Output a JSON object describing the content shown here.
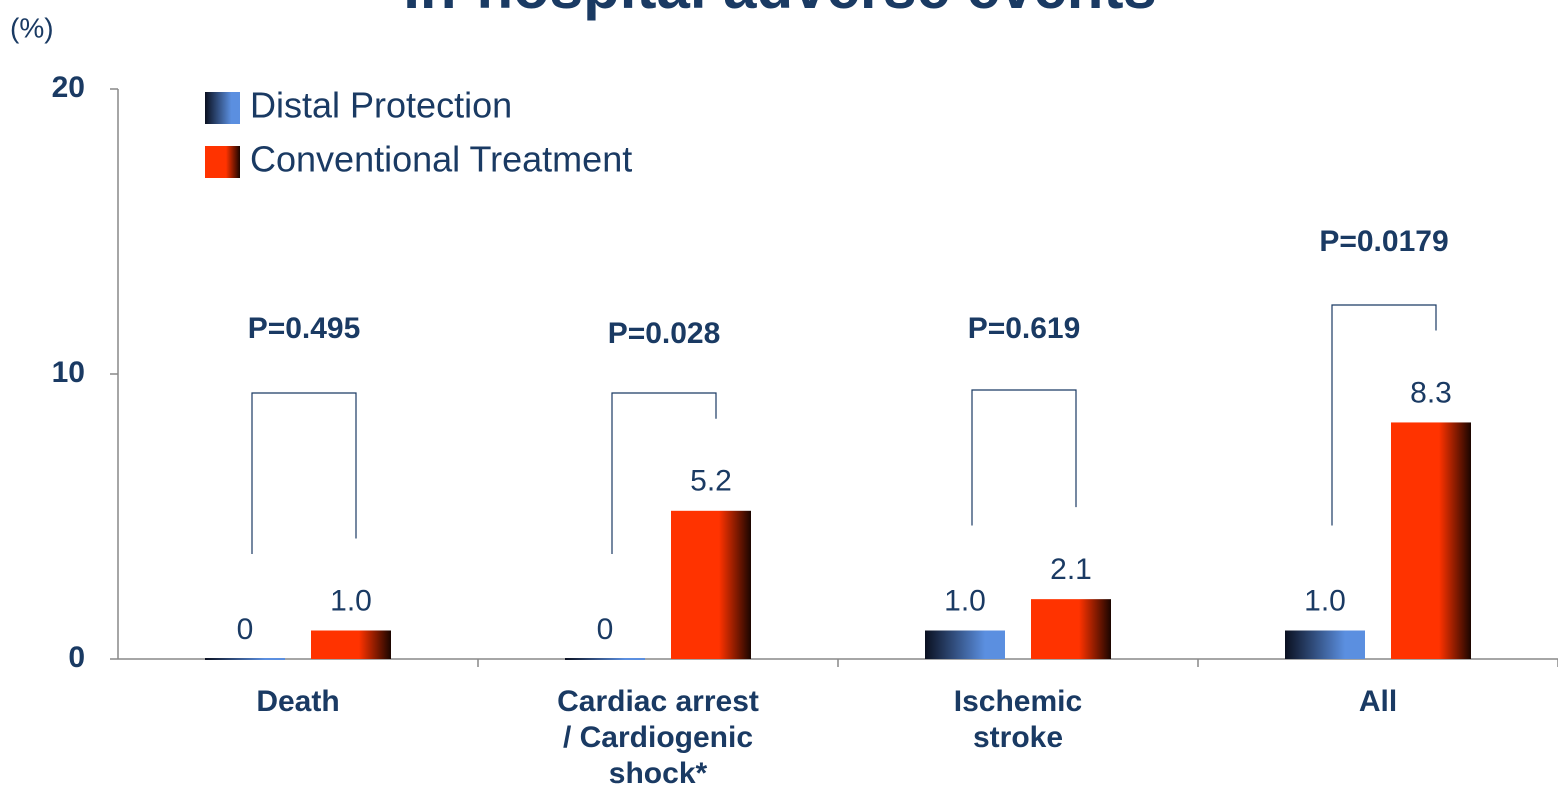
{
  "chart_data": {
    "type": "bar",
    "title": "In-hospital adverse events",
    "y_axis_label": "(%)",
    "categories": [
      "Death",
      "Cardiac arrest\n/ Cardiogenic\nshock*",
      "Ischemic\nstroke",
      "All"
    ],
    "series": [
      {
        "name": "Distal Protection",
        "color": "#5b8fe0",
        "values": [
          0,
          0,
          1.0,
          1.0
        ],
        "value_labels": [
          "0",
          "0",
          "1.0",
          "1.0"
        ]
      },
      {
        "name": "Conventional Treatment",
        "color": "#ff3300",
        "values": [
          1.0,
          5.2,
          2.1,
          8.3
        ],
        "value_labels": [
          "1.0",
          "5.2",
          "2.1",
          "8.3"
        ]
      }
    ],
    "annotations": [
      "P=0.495",
      "P=0.028",
      "P=0.619",
      "P=0.0179"
    ],
    "ylim": [
      0,
      20
    ],
    "yticks": [
      0,
      10,
      20
    ],
    "grid": false,
    "legend": "top-left"
  }
}
